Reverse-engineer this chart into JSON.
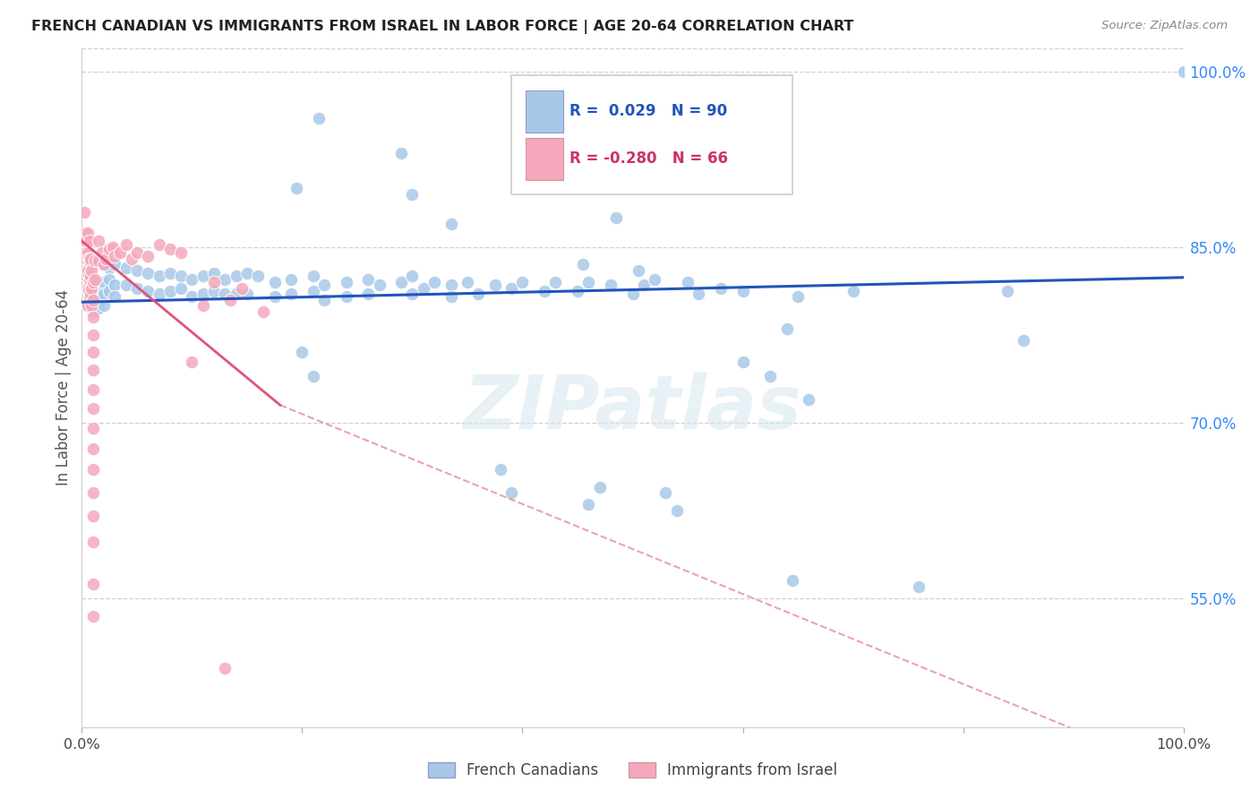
{
  "title": "FRENCH CANADIAN VS IMMIGRANTS FROM ISRAEL IN LABOR FORCE | AGE 20-64 CORRELATION CHART",
  "source": "Source: ZipAtlas.com",
  "ylabel": "In Labor Force | Age 20-64",
  "xlim": [
    0.0,
    1.0
  ],
  "ylim": [
    0.44,
    1.02
  ],
  "x_ticks": [
    0.0,
    0.2,
    0.4,
    0.6,
    0.8,
    1.0
  ],
  "x_tick_labels": [
    "0.0%",
    "",
    "",
    "",
    "",
    "100.0%"
  ],
  "y_ticks_right": [
    0.55,
    0.7,
    0.85,
    1.0
  ],
  "y_tick_labels_right": [
    "55.0%",
    "70.0%",
    "85.0%",
    "100.0%"
  ],
  "background_color": "#ffffff",
  "grid_color": "#d0d0d0",
  "watermark": "ZIPatlas",
  "blue_color": "#a8c8e8",
  "pink_color": "#f5a8bc",
  "blue_line_color": "#2255bb",
  "pink_line_color": "#dd5577",
  "blue_scatter": [
    [
      0.005,
      0.84
    ],
    [
      0.005,
      0.825
    ],
    [
      0.005,
      0.81
    ],
    [
      0.005,
      0.8
    ],
    [
      0.01,
      0.835
    ],
    [
      0.01,
      0.82
    ],
    [
      0.01,
      0.805
    ],
    [
      0.01,
      0.795
    ],
    [
      0.015,
      0.838
    ],
    [
      0.015,
      0.818
    ],
    [
      0.015,
      0.808
    ],
    [
      0.015,
      0.798
    ],
    [
      0.02,
      0.835
    ],
    [
      0.02,
      0.82
    ],
    [
      0.02,
      0.81
    ],
    [
      0.02,
      0.8
    ],
    [
      0.025,
      0.832
    ],
    [
      0.025,
      0.822
    ],
    [
      0.025,
      0.812
    ],
    [
      0.03,
      0.835
    ],
    [
      0.03,
      0.818
    ],
    [
      0.03,
      0.808
    ],
    [
      0.04,
      0.832
    ],
    [
      0.04,
      0.818
    ],
    [
      0.05,
      0.83
    ],
    [
      0.05,
      0.815
    ],
    [
      0.06,
      0.828
    ],
    [
      0.06,
      0.812
    ],
    [
      0.07,
      0.825
    ],
    [
      0.07,
      0.81
    ],
    [
      0.08,
      0.828
    ],
    [
      0.08,
      0.812
    ],
    [
      0.09,
      0.825
    ],
    [
      0.09,
      0.815
    ],
    [
      0.1,
      0.822
    ],
    [
      0.1,
      0.808
    ],
    [
      0.11,
      0.825
    ],
    [
      0.11,
      0.81
    ],
    [
      0.12,
      0.828
    ],
    [
      0.12,
      0.812
    ],
    [
      0.13,
      0.822
    ],
    [
      0.13,
      0.81
    ],
    [
      0.14,
      0.825
    ],
    [
      0.14,
      0.81
    ],
    [
      0.15,
      0.828
    ],
    [
      0.15,
      0.81
    ],
    [
      0.16,
      0.825
    ],
    [
      0.175,
      0.82
    ],
    [
      0.175,
      0.808
    ],
    [
      0.19,
      0.822
    ],
    [
      0.19,
      0.81
    ],
    [
      0.21,
      0.825
    ],
    [
      0.21,
      0.812
    ],
    [
      0.22,
      0.818
    ],
    [
      0.22,
      0.805
    ],
    [
      0.24,
      0.82
    ],
    [
      0.24,
      0.808
    ],
    [
      0.26,
      0.822
    ],
    [
      0.26,
      0.81
    ],
    [
      0.27,
      0.818
    ],
    [
      0.29,
      0.82
    ],
    [
      0.3,
      0.825
    ],
    [
      0.3,
      0.81
    ],
    [
      0.31,
      0.815
    ],
    [
      0.32,
      0.82
    ],
    [
      0.335,
      0.818
    ],
    [
      0.335,
      0.808
    ],
    [
      0.35,
      0.82
    ],
    [
      0.36,
      0.81
    ],
    [
      0.375,
      0.818
    ],
    [
      0.39,
      0.815
    ],
    [
      0.4,
      0.82
    ],
    [
      0.42,
      0.812
    ],
    [
      0.43,
      0.82
    ],
    [
      0.45,
      0.812
    ],
    [
      0.46,
      0.82
    ],
    [
      0.48,
      0.818
    ],
    [
      0.5,
      0.81
    ],
    [
      0.51,
      0.818
    ],
    [
      0.52,
      0.822
    ],
    [
      0.55,
      0.82
    ],
    [
      0.56,
      0.81
    ],
    [
      0.58,
      0.815
    ],
    [
      0.6,
      0.812
    ],
    [
      0.65,
      0.808
    ],
    [
      0.7,
      0.812
    ],
    [
      0.84,
      0.812
    ],
    [
      1.0,
      1.0
    ],
    [
      0.215,
      0.96
    ],
    [
      0.29,
      0.93
    ],
    [
      0.195,
      0.9
    ],
    [
      0.3,
      0.895
    ],
    [
      0.335,
      0.87
    ],
    [
      0.485,
      0.875
    ],
    [
      0.455,
      0.835
    ],
    [
      0.505,
      0.83
    ],
    [
      0.6,
      0.752
    ],
    [
      0.625,
      0.74
    ],
    [
      0.64,
      0.78
    ],
    [
      0.66,
      0.72
    ],
    [
      0.2,
      0.76
    ],
    [
      0.21,
      0.74
    ],
    [
      0.38,
      0.66
    ],
    [
      0.39,
      0.64
    ],
    [
      0.46,
      0.63
    ],
    [
      0.47,
      0.645
    ],
    [
      0.53,
      0.64
    ],
    [
      0.54,
      0.625
    ],
    [
      0.645,
      0.565
    ],
    [
      0.76,
      0.56
    ],
    [
      0.855,
      0.77
    ]
  ],
  "pink_scatter": [
    [
      0.002,
      0.88
    ],
    [
      0.003,
      0.862
    ],
    [
      0.003,
      0.845
    ],
    [
      0.004,
      0.855
    ],
    [
      0.004,
      0.84
    ],
    [
      0.004,
      0.825
    ],
    [
      0.005,
      0.862
    ],
    [
      0.005,
      0.845
    ],
    [
      0.005,
      0.83
    ],
    [
      0.005,
      0.815
    ],
    [
      0.005,
      0.8
    ],
    [
      0.006,
      0.84
    ],
    [
      0.006,
      0.825
    ],
    [
      0.006,
      0.812
    ],
    [
      0.007,
      0.855
    ],
    [
      0.007,
      0.838
    ],
    [
      0.007,
      0.822
    ],
    [
      0.007,
      0.808
    ],
    [
      0.008,
      0.84
    ],
    [
      0.008,
      0.825
    ],
    [
      0.008,
      0.81
    ],
    [
      0.009,
      0.83
    ],
    [
      0.009,
      0.815
    ],
    [
      0.009,
      0.8
    ],
    [
      0.01,
      0.82
    ],
    [
      0.01,
      0.805
    ],
    [
      0.01,
      0.79
    ],
    [
      0.01,
      0.775
    ],
    [
      0.01,
      0.76
    ],
    [
      0.01,
      0.745
    ],
    [
      0.01,
      0.728
    ],
    [
      0.01,
      0.712
    ],
    [
      0.01,
      0.695
    ],
    [
      0.01,
      0.678
    ],
    [
      0.01,
      0.66
    ],
    [
      0.01,
      0.64
    ],
    [
      0.01,
      0.62
    ],
    [
      0.01,
      0.598
    ],
    [
      0.012,
      0.838
    ],
    [
      0.012,
      0.822
    ],
    [
      0.015,
      0.855
    ],
    [
      0.015,
      0.838
    ],
    [
      0.018,
      0.845
    ],
    [
      0.02,
      0.835
    ],
    [
      0.022,
      0.84
    ],
    [
      0.025,
      0.848
    ],
    [
      0.028,
      0.85
    ],
    [
      0.03,
      0.842
    ],
    [
      0.035,
      0.845
    ],
    [
      0.04,
      0.852
    ],
    [
      0.045,
      0.84
    ],
    [
      0.05,
      0.845
    ],
    [
      0.06,
      0.842
    ],
    [
      0.07,
      0.852
    ],
    [
      0.08,
      0.848
    ],
    [
      0.09,
      0.845
    ],
    [
      0.1,
      0.752
    ],
    [
      0.11,
      0.8
    ],
    [
      0.12,
      0.82
    ],
    [
      0.135,
      0.805
    ],
    [
      0.145,
      0.815
    ],
    [
      0.165,
      0.795
    ],
    [
      0.13,
      0.49
    ],
    [
      0.01,
      0.562
    ],
    [
      0.01,
      0.535
    ]
  ],
  "blue_trend": [
    0.0,
    1.0,
    0.803,
    0.824
  ],
  "pink_trend_solid": [
    0.0,
    0.18,
    0.855,
    0.715
  ],
  "pink_trend_dashed": [
    0.18,
    1.0,
    0.715,
    0.4
  ],
  "legend_blue_label": "French Canadians",
  "legend_pink_label": "Immigrants from Israel"
}
